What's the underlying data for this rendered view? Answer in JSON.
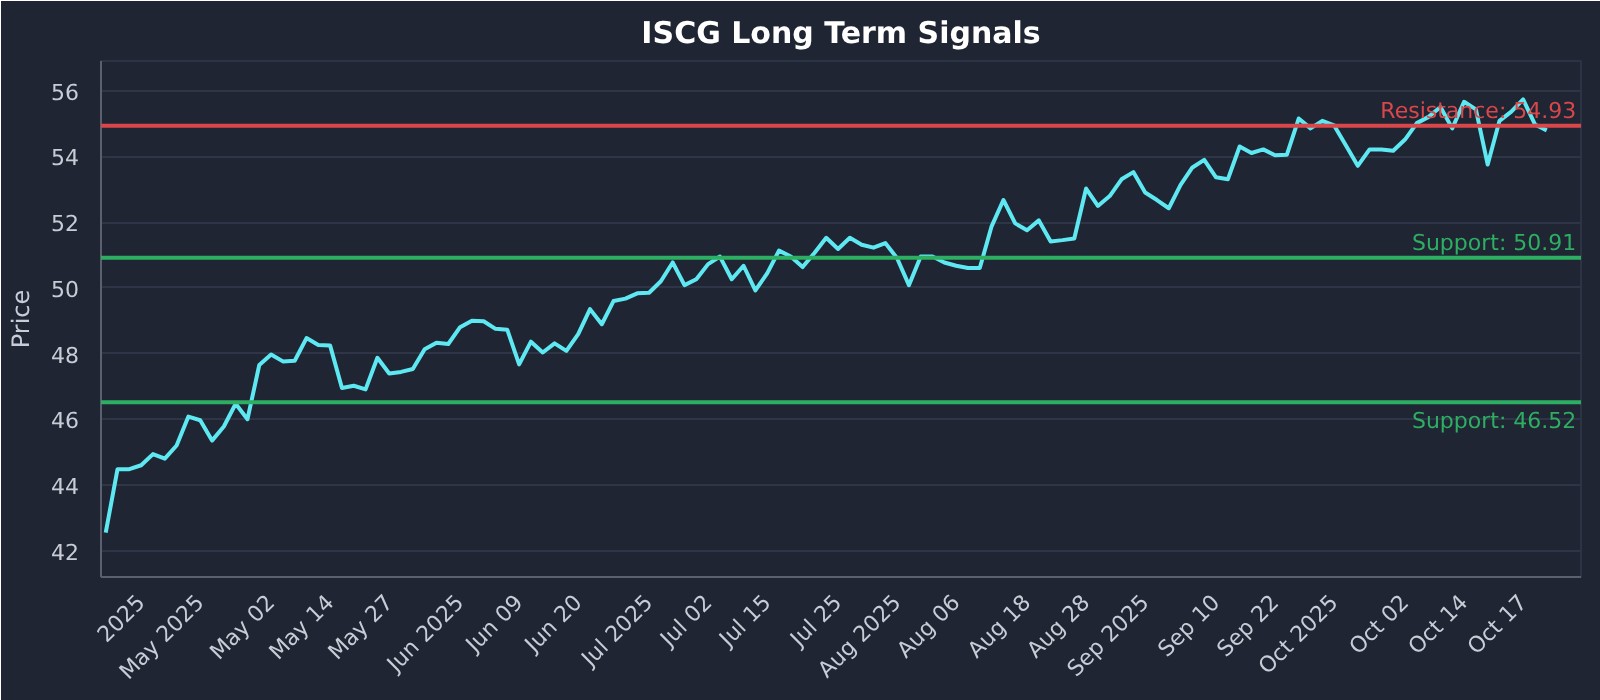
{
  "chart_data": {
    "type": "line",
    "title": "ISCG Long Term Signals",
    "ylabel": "Price",
    "categories": [
      null,
      null,
      null,
      "2025",
      null,
      null,
      null,
      null,
      "May 2025",
      null,
      null,
      null,
      null,
      null,
      "May 02",
      null,
      null,
      null,
      null,
      "May 14",
      null,
      null,
      null,
      null,
      "May 27",
      null,
      null,
      null,
      null,
      null,
      "Jun 2025",
      null,
      null,
      null,
      null,
      "Jun 09",
      null,
      null,
      null,
      null,
      "Jun 20",
      null,
      null,
      null,
      null,
      null,
      "Jul 2025",
      null,
      null,
      null,
      null,
      "Jul 02",
      null,
      null,
      null,
      null,
      "Jul 15",
      null,
      null,
      null,
      null,
      null,
      "Jul 25",
      null,
      null,
      null,
      null,
      "Aug 2025",
      null,
      null,
      null,
      null,
      "Aug 06",
      null,
      null,
      null,
      null,
      null,
      "Aug 18",
      null,
      null,
      null,
      null,
      "Aug 28",
      null,
      null,
      null,
      null,
      "Sep 2025",
      null,
      null,
      null,
      null,
      null,
      "Sep 10",
      null,
      null,
      null,
      null,
      "Sep 22",
      null,
      null,
      null,
      null,
      "Oct 2025",
      null,
      null,
      null,
      null,
      null,
      "Oct 02",
      null,
      null,
      null,
      null,
      "Oct 14",
      null,
      null,
      null,
      null,
      "Oct 17",
      null,
      null
    ],
    "series": [
      {
        "color": "#5ee8f2",
        "values": [
          42.55,
          44.48,
          44.48,
          44.6,
          44.94,
          44.8,
          45.2,
          46.08,
          45.97,
          45.35,
          45.78,
          46.47,
          46.0,
          47.65,
          47.97,
          47.76,
          47.78,
          48.47,
          48.26,
          48.24,
          46.95,
          47.02,
          46.91,
          47.87,
          47.39,
          47.44,
          47.53,
          48.13,
          48.33,
          48.29,
          48.8,
          49.0,
          48.98,
          48.75,
          48.72,
          47.67,
          48.36,
          48.03,
          48.31,
          48.08,
          48.59,
          49.35,
          48.89,
          49.6,
          49.67,
          49.83,
          49.85,
          50.2,
          50.77,
          50.08,
          50.26,
          50.72,
          50.95,
          50.26,
          50.67,
          49.92,
          50.44,
          51.13,
          50.95,
          50.63,
          51.06,
          51.52,
          51.18,
          51.52,
          51.31,
          51.22,
          51.36,
          50.9,
          50.08,
          50.95,
          50.95,
          50.77,
          50.67,
          50.6,
          50.6,
          51.87,
          52.67,
          51.96,
          51.75,
          52.05,
          51.41,
          51.45,
          51.5,
          53.02,
          52.49,
          52.79,
          53.3,
          53.52,
          52.9,
          52.67,
          52.42,
          53.13,
          53.66,
          53.89,
          53.36,
          53.3,
          54.3,
          54.1,
          54.21,
          54.03,
          54.05,
          55.15,
          54.85,
          55.08,
          54.94,
          54.33,
          53.71,
          54.21,
          54.21,
          54.17,
          54.51,
          55.01,
          55.2,
          55.5,
          54.85,
          55.66,
          55.43,
          53.75,
          55.08,
          55.36,
          55.73,
          54.97,
          54.79
        ]
      }
    ],
    "ylim": [
      41.2,
      56.9
    ],
    "yticks": [
      42,
      44,
      46,
      48,
      50,
      52,
      54,
      56
    ],
    "grid": "y",
    "ref_lines": [
      {
        "axis": "y",
        "value": 54.93,
        "label": "Resistance: 54.93",
        "color": "#d9474b"
      },
      {
        "axis": "y",
        "value": 50.91,
        "label": "Support: 50.91",
        "color": "#2eae62"
      },
      {
        "axis": "y",
        "value": 46.52,
        "label": "Support: 46.52",
        "color": "#2eae62"
      }
    ]
  }
}
